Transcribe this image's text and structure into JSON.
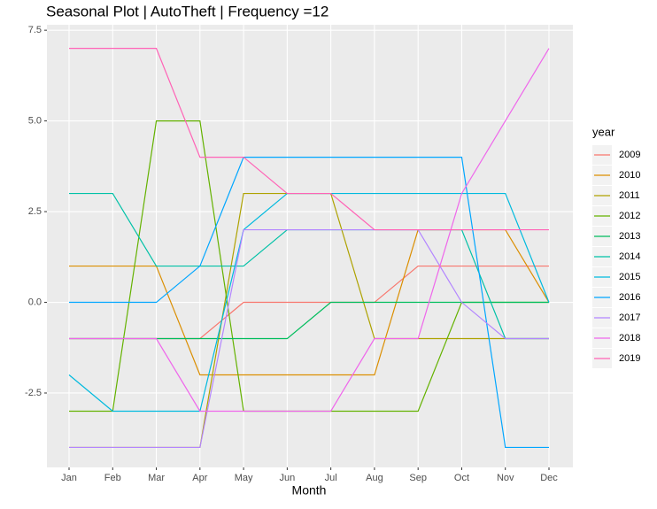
{
  "chart_data": {
    "type": "line",
    "title": "Seasonal Plot | AutoTheft | Frequency =12",
    "x_label": "Month",
    "legend_title": "year",
    "legend_position": "right",
    "grid": true,
    "categories": [
      "Jan",
      "Feb",
      "Mar",
      "Apr",
      "May",
      "Jun",
      "Jul",
      "Aug",
      "Sep",
      "Oct",
      "Nov",
      "Dec"
    ],
    "ylim": [
      -4.55,
      7.65
    ],
    "yticks": [
      {
        "value": -2.5,
        "label": "-2.5"
      },
      {
        "value": 0,
        "label": "0.0"
      },
      {
        "value": 2.5,
        "label": "2.5"
      },
      {
        "value": 5,
        "label": "5.0"
      },
      {
        "value": 7.5,
        "label": "7.5"
      }
    ],
    "series": [
      {
        "name": "2009",
        "color": "#F8766D",
        "values": [
          -1,
          -1,
          -1,
          -1,
          0,
          0,
          0,
          0,
          1,
          1,
          1,
          1
        ]
      },
      {
        "name": "2010",
        "color": "#DB8E00",
        "values": [
          1,
          1,
          1,
          -2,
          -2,
          -2,
          -2,
          -2,
          2,
          2,
          2,
          0
        ]
      },
      {
        "name": "2011",
        "color": "#AEA200",
        "values": [
          -4,
          -4,
          -4,
          -4,
          3,
          3,
          3,
          -1,
          -1,
          -1,
          -1,
          -1
        ]
      },
      {
        "name": "2012",
        "color": "#64B200",
        "values": [
          -3,
          -3,
          5,
          5,
          -3,
          -3,
          -3,
          -3,
          -3,
          0,
          0,
          0
        ]
      },
      {
        "name": "2013",
        "color": "#00BD5C",
        "values": [
          -1,
          -1,
          -1,
          -1,
          -1,
          -1,
          0,
          0,
          0,
          0,
          0,
          0
        ]
      },
      {
        "name": "2014",
        "color": "#00C1A7",
        "values": [
          3,
          3,
          1,
          1,
          1,
          2,
          2,
          2,
          2,
          2,
          -1,
          -1
        ]
      },
      {
        "name": "2015",
        "color": "#00BADE",
        "values": [
          -2,
          -3,
          -3,
          -3,
          2,
          3,
          3,
          3,
          3,
          3,
          3,
          0
        ]
      },
      {
        "name": "2016",
        "color": "#00A6FF",
        "values": [
          0,
          0,
          0,
          1,
          4,
          4,
          4,
          4,
          4,
          4,
          -4,
          -4
        ]
      },
      {
        "name": "2017",
        "color": "#B385FF",
        "values": [
          -4,
          -4,
          -4,
          -4,
          2,
          2,
          2,
          2,
          2,
          0,
          -1,
          -1
        ]
      },
      {
        "name": "2018",
        "color": "#EF67EB",
        "values": [
          -1,
          -1,
          -1,
          -3,
          -3,
          -3,
          -3,
          -1,
          -1,
          3,
          5,
          7
        ]
      },
      {
        "name": "2019",
        "color": "#FF63B6",
        "values": [
          7,
          7,
          7,
          4,
          4,
          3,
          3,
          2,
          2,
          2,
          2,
          2
        ]
      }
    ]
  }
}
